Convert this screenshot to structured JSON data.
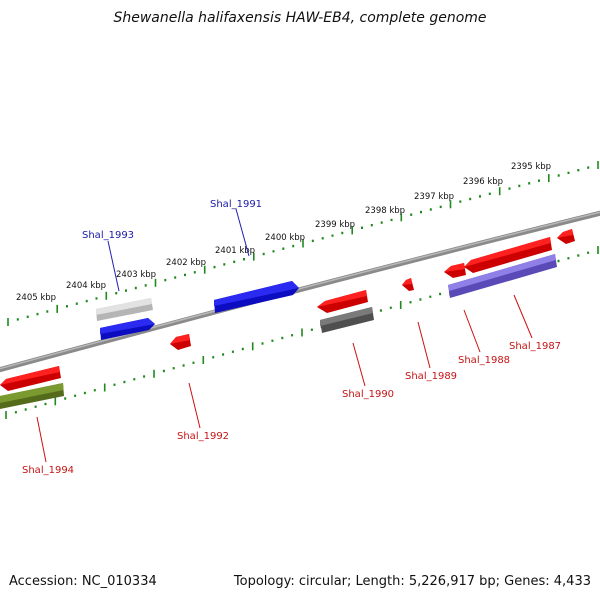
{
  "title": "Shewanella halifaxensis HAW-EB4, complete genome",
  "footer": {
    "accession": "Accession: NC_010334",
    "summary": "Topology: circular; Length: 5,226,917 bp; Genes: 4,433"
  },
  "colors": {
    "backbone": "#7d7d7d",
    "ticks": "#1e8a1e",
    "forward_label": "#1a1aa8",
    "reverse_label": "#c41414",
    "red": "#ff1a1a",
    "blue": "#1515e6",
    "gray": "#c9c9c9",
    "darkgray": "#6a6a6a",
    "olive": "#6b8e23",
    "purple": "#7a6ad6"
  },
  "tick_labels": [
    "2395 kbp",
    "2396 kbp",
    "2397 kbp",
    "2398 kbp",
    "2399 kbp",
    "2400 kbp",
    "2401 kbp",
    "2402 kbp",
    "2403 kbp",
    "2404 kbp",
    "2405 kbp"
  ],
  "gene_labels": {
    "shal_1993": "Shal_1993",
    "shal_1991": "Shal_1991",
    "shal_1994": "Shal_1994",
    "shal_1992": "Shal_1992",
    "shal_1990": "Shal_1990",
    "shal_1989": "Shal_1989",
    "shal_1988": "Shal_1988",
    "shal_1987": "Shal_1987"
  }
}
